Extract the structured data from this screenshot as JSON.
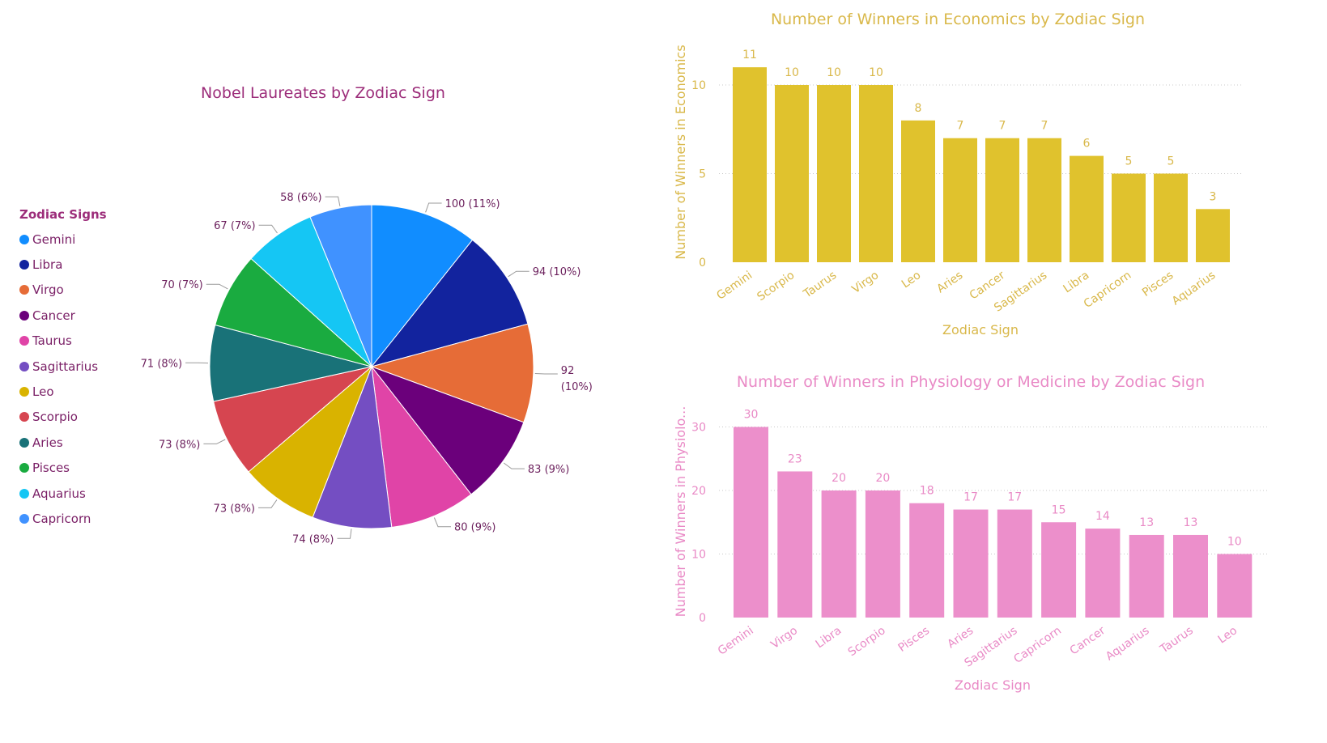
{
  "chart_data": [
    {
      "type": "pie",
      "title": "Nobel Laureates by Zodiac Sign",
      "legend_title": "Zodiac Signs",
      "legend_position": "left",
      "slices": [
        {
          "label": "Gemini",
          "value": 100,
          "data_label": "100 (11%)",
          "color": "#118DFF"
        },
        {
          "label": "Libra",
          "value": 94,
          "data_label": "94 (10%)",
          "color": "#12239E"
        },
        {
          "label": "Virgo",
          "value": 92,
          "data_label": "92 (10%)",
          "color": "#E66C37"
        },
        {
          "label": "Cancer",
          "value": 83,
          "data_label": "83 (9%)",
          "color": "#6B007B"
        },
        {
          "label": "Taurus",
          "value": 80,
          "data_label": "80 (9%)",
          "color": "#E044A7"
        },
        {
          "label": "Sagittarius",
          "value": 74,
          "data_label": "74 (8%)",
          "color": "#744EC2"
        },
        {
          "label": "Leo",
          "value": 73,
          "data_label": "73 (8%)",
          "color": "#D9B300"
        },
        {
          "label": "Scorpio",
          "value": 73,
          "data_label": "73 (8%)",
          "color": "#D64550"
        },
        {
          "label": "Aries",
          "value": 71,
          "data_label": "71 (8%)",
          "color": "#197278"
        },
        {
          "label": "Pisces",
          "value": 70,
          "data_label": "70 (7%)",
          "color": "#1AAB40"
        },
        {
          "label": "Aquarius",
          "value": 67,
          "data_label": "67 (7%)",
          "color": "#15C6F4"
        },
        {
          "label": "Capricorn",
          "value": 58,
          "data_label": "58 (6%)",
          "color": "#4092FF"
        }
      ]
    },
    {
      "type": "bar",
      "title": "Number of Winners in Economics by Zodiac Sign",
      "xlabel": "Zodiac Sign",
      "ylabel": "Number of Winners in Economics",
      "ylim": [
        0,
        12
      ],
      "yticks": [
        0,
        5,
        10
      ],
      "grid": true,
      "color": "#E0C22D",
      "categories": [
        "Gemini",
        "Scorpio",
        "Taurus",
        "Virgo",
        "Leo",
        "Aries",
        "Cancer",
        "Sagittarius",
        "Libra",
        "Capricorn",
        "Pisces",
        "Aquarius"
      ],
      "values": [
        11,
        10,
        10,
        10,
        8,
        7,
        7,
        7,
        6,
        5,
        5,
        3
      ]
    },
    {
      "type": "bar",
      "title": "Number of Winners in Physiology or Medicine by Zodiac Sign",
      "xlabel": "Zodiac Sign",
      "ylabel": "Number of Winners in Physiolo...",
      "ylim": [
        0,
        32
      ],
      "yticks": [
        0,
        10,
        20,
        30
      ],
      "grid": true,
      "color": "#EC8FCB",
      "categories": [
        "Gemini",
        "Virgo",
        "Libra",
        "Scorpio",
        "Pisces",
        "Aries",
        "Sagittarius",
        "Capricorn",
        "Cancer",
        "Aquarius",
        "Taurus",
        "Leo"
      ],
      "values": [
        30,
        23,
        20,
        20,
        18,
        17,
        17,
        15,
        14,
        13,
        13,
        10
      ]
    }
  ],
  "colors": {
    "pie_title": "#9C2D7A",
    "pie_label": "#6b1f5c",
    "econ_text": "#D9B84A",
    "med_text": "#E98AC6",
    "grid": "#cccccc"
  }
}
